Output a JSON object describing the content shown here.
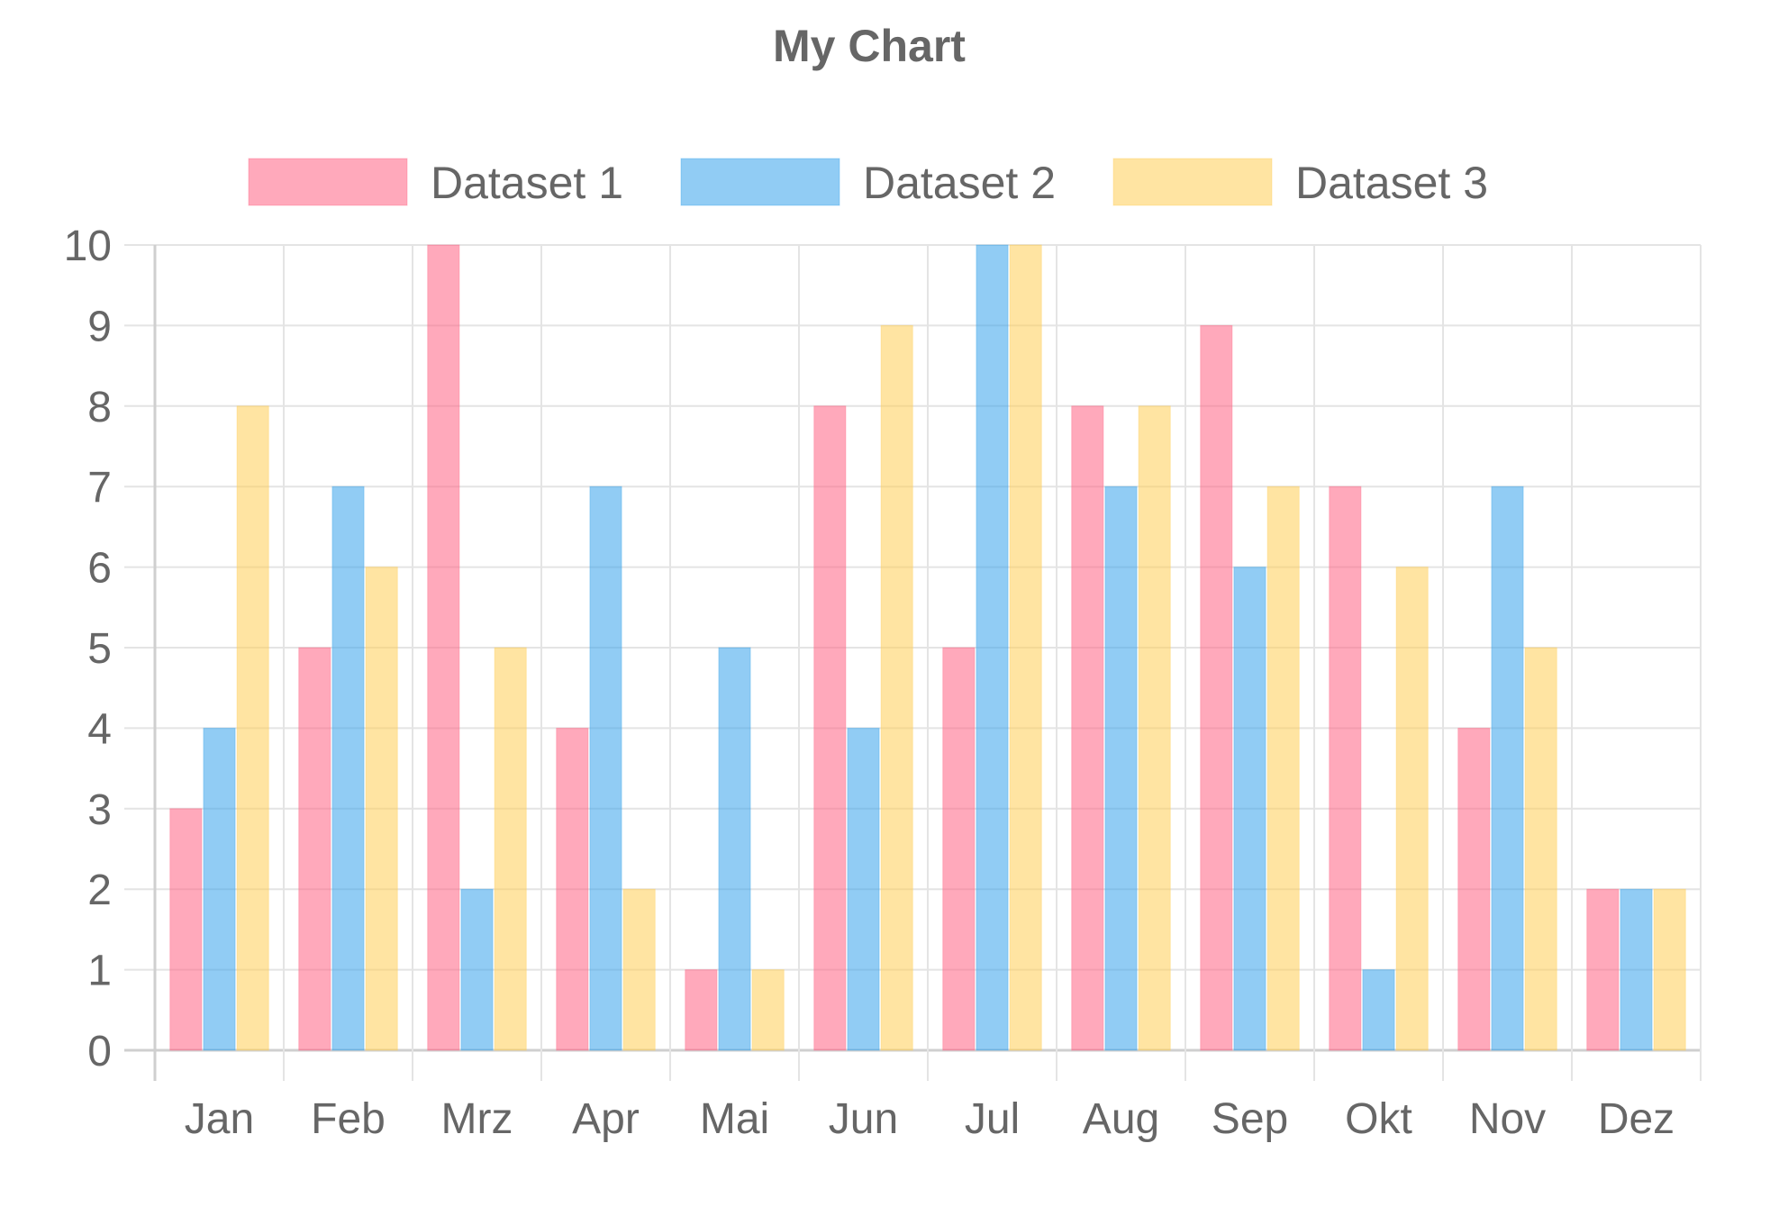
{
  "chart_data": {
    "type": "bar",
    "title": "My Chart",
    "xlabel": "",
    "ylabel": "",
    "categories": [
      "Jan",
      "Feb",
      "Mrz",
      "Apr",
      "Mai",
      "Jun",
      "Jul",
      "Aug",
      "Sep",
      "Okt",
      "Nov",
      "Dez"
    ],
    "series": [
      {
        "name": "Dataset 1",
        "color": "#ff6384",
        "values": [
          3,
          5,
          10,
          4,
          1,
          8,
          5,
          8,
          9,
          7,
          4,
          2
        ]
      },
      {
        "name": "Dataset 2",
        "color": "#36a2eb",
        "values": [
          4,
          7,
          2,
          7,
          5,
          4,
          10,
          7,
          6,
          1,
          7,
          2
        ]
      },
      {
        "name": "Dataset 3",
        "color": "#ffcd56",
        "values": [
          8,
          6,
          5,
          2,
          1,
          9,
          10,
          8,
          7,
          6,
          5,
          2
        ]
      }
    ],
    "ylim": [
      0,
      10
    ],
    "yticks": [
      "0",
      "1",
      "2",
      "3",
      "4",
      "5",
      "6",
      "7",
      "8",
      "9",
      "10"
    ],
    "grid": true,
    "legend_position": "top"
  }
}
